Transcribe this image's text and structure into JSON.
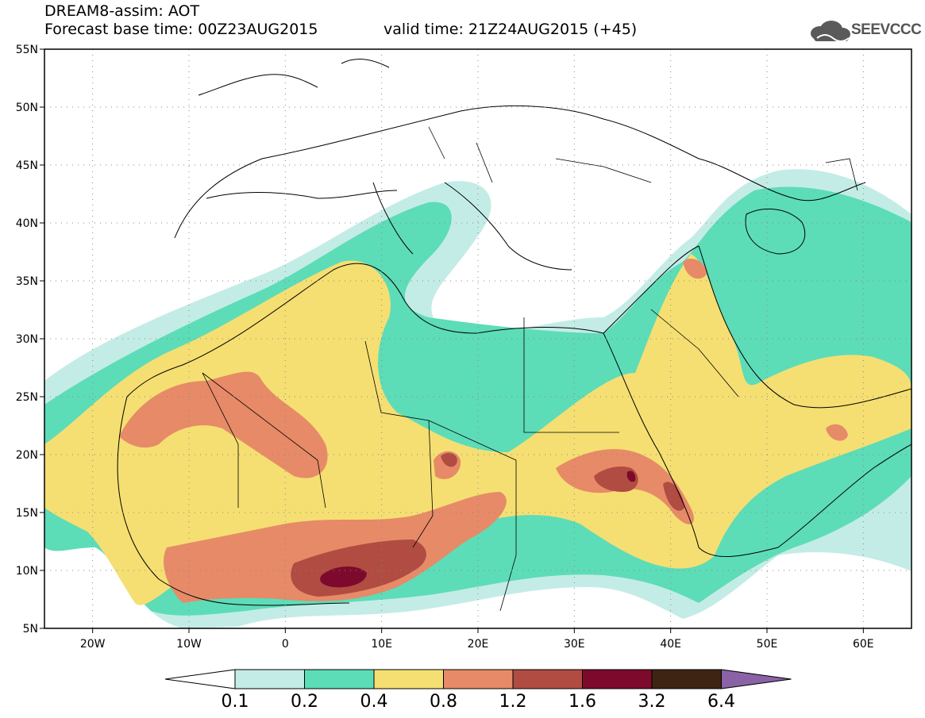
{
  "header": {
    "title": "DREAM8-assim: AOT",
    "forecast_base": "Forecast base time: 00Z23AUG2015",
    "valid_time": "valid time: 21Z24AUG2015 (+45)"
  },
  "logo": {
    "text": "SEEVCCC",
    "icon": "cloud-icon"
  },
  "map": {
    "variable": "AOT",
    "lon_range": [
      -25,
      65
    ],
    "lat_range": [
      5,
      55
    ],
    "lat_labels": [
      "55N",
      "50N",
      "45N",
      "40N",
      "35N",
      "30N",
      "25N",
      "20N",
      "15N",
      "10N",
      "5N"
    ],
    "lon_labels": [
      "20W",
      "10W",
      "0",
      "10E",
      "20E",
      "30E",
      "40E",
      "50E",
      "60E"
    ],
    "grid": "dotted"
  },
  "colorbar": {
    "labels": [
      "0.1",
      "0.2",
      "0.4",
      "0.8",
      "1.2",
      "1.6",
      "3.2",
      "6.4"
    ],
    "colors": [
      "#c4ece6",
      "#5ddcb8",
      "#f5df72",
      "#e78a68",
      "#b14c42",
      "#7d0a2c",
      "#3d2413",
      "#8a63a6"
    ],
    "under_color": "#ffffff",
    "over_color": "#8a63a6"
  }
}
